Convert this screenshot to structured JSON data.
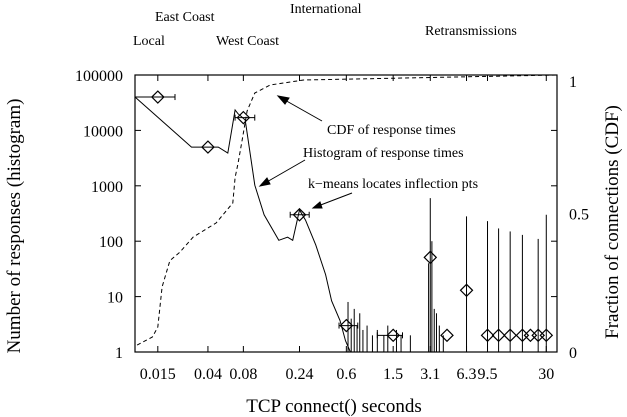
{
  "chart_data": {
    "type": "line",
    "xlabel": "TCP connect() seconds",
    "ylabel": "Number of responses (histogram)",
    "y2label": "Fraction of connections (CDF)",
    "xscale": "log",
    "yscale": "log",
    "xlim": [
      0.0096,
      37
    ],
    "ylim": [
      1,
      100000
    ],
    "y2lim": [
      0,
      1
    ],
    "x_ticks": [
      "0.015",
      "0.04",
      "0.08",
      "0.24",
      "0.6",
      "1.5",
      "3.1",
      "6.3",
      "9.5",
      "30"
    ],
    "x_tick_values": [
      0.015,
      0.04,
      0.08,
      0.24,
      0.6,
      1.5,
      3.1,
      6.3,
      9.5,
      30
    ],
    "y_ticks": [
      "100000",
      "10000",
      "1000",
      "100",
      "10",
      "1"
    ],
    "y_tick_values": [
      100000,
      10000,
      1000,
      100,
      10,
      1
    ],
    "y2_ticks": [
      "1",
      "0.5",
      "0"
    ],
    "y2_tick_values": [
      1,
      0.5,
      0
    ],
    "region_labels": [
      {
        "text": "Local"
      },
      {
        "text": "East Coast"
      },
      {
        "text": "West Coast"
      },
      {
        "text": "International"
      },
      {
        "text": "Retransmissions"
      }
    ],
    "annotations": [
      {
        "text": "CDF of response times"
      },
      {
        "text": "Histogram of response times"
      },
      {
        "text": "k−means locates inflection pts"
      }
    ],
    "series": [
      {
        "name": "Histogram of response times",
        "style": "solid",
        "x": [
          0.0096,
          0.029,
          0.049,
          0.059,
          0.068,
          0.072,
          0.076,
          0.083,
          0.1,
          0.12,
          0.16,
          0.19,
          0.21,
          0.24,
          0.27,
          0.33,
          0.4,
          0.45,
          0.53,
          0.59,
          0.65
        ],
        "y": [
          40000,
          5000,
          5000,
          3900,
          23300,
          20000,
          18200,
          15400,
          1030,
          300,
          104,
          118,
          104,
          366,
          240,
          85,
          25,
          8.4,
          3.7,
          1.6,
          1
        ]
      },
      {
        "name": "CDF of response times",
        "style": "dashed",
        "axis": "right",
        "x": [
          0.01,
          0.0135,
          0.015,
          0.0163,
          0.019,
          0.023,
          0.03,
          0.047,
          0.065,
          0.068,
          0.072,
          0.079,
          0.086,
          0.1,
          0.135,
          0.26,
          37
        ],
        "y": [
          0.025,
          0.054,
          0.09,
          0.235,
          0.33,
          0.36,
          0.415,
          0.466,
          0.538,
          0.63,
          0.68,
          0.776,
          0.87,
          0.935,
          0.964,
          0.982,
          1.0
        ]
      },
      {
        "name": "k-means centroids",
        "style": "diamond",
        "x": [
          0.015,
          0.04,
          0.08,
          0.24,
          0.6,
          1.5,
          3.1,
          4.3,
          6.3,
          9.5,
          11.8,
          14.8,
          18.8,
          22,
          25.6,
          30
        ],
        "y": [
          40000,
          5000,
          17000,
          300,
          3,
          2,
          51,
          2,
          13,
          2,
          2,
          2,
          2,
          2,
          2,
          2
        ],
        "xerr_low": [
          0.0096,
          0.04,
          0.068,
          0.2,
          0.52,
          1.1,
          3.1,
          4.3,
          6.3,
          9.5,
          11.8,
          14.8,
          18.8,
          22,
          25.6,
          30
        ],
        "xerr_high": [
          0.021,
          0.04,
          0.1,
          0.29,
          0.75,
          1.8,
          3.1,
          4.3,
          6.3,
          9.5,
          11.8,
          14.8,
          18.8,
          22,
          25.6,
          30
        ]
      }
    ],
    "spikes": {
      "x": [
        0.62,
        0.66,
        0.7,
        0.74,
        0.78,
        0.83,
        0.9,
        1.0,
        1.1,
        1.25,
        1.35,
        1.6,
        1.75,
        2.1,
        3.0,
        3.1,
        3.2,
        3.35,
        3.5,
        3.7,
        4.0,
        6.3,
        9.5,
        11.8,
        14.8,
        18.8,
        25.6,
        30
      ],
      "y": [
        8,
        4,
        6,
        3,
        5,
        2.5,
        3,
        2,
        2.5,
        2,
        3,
        2.5,
        2,
        2,
        40,
        600,
        100,
        6,
        5,
        3,
        2,
        280,
        230,
        170,
        150,
        130,
        110,
        300
      ]
    }
  }
}
